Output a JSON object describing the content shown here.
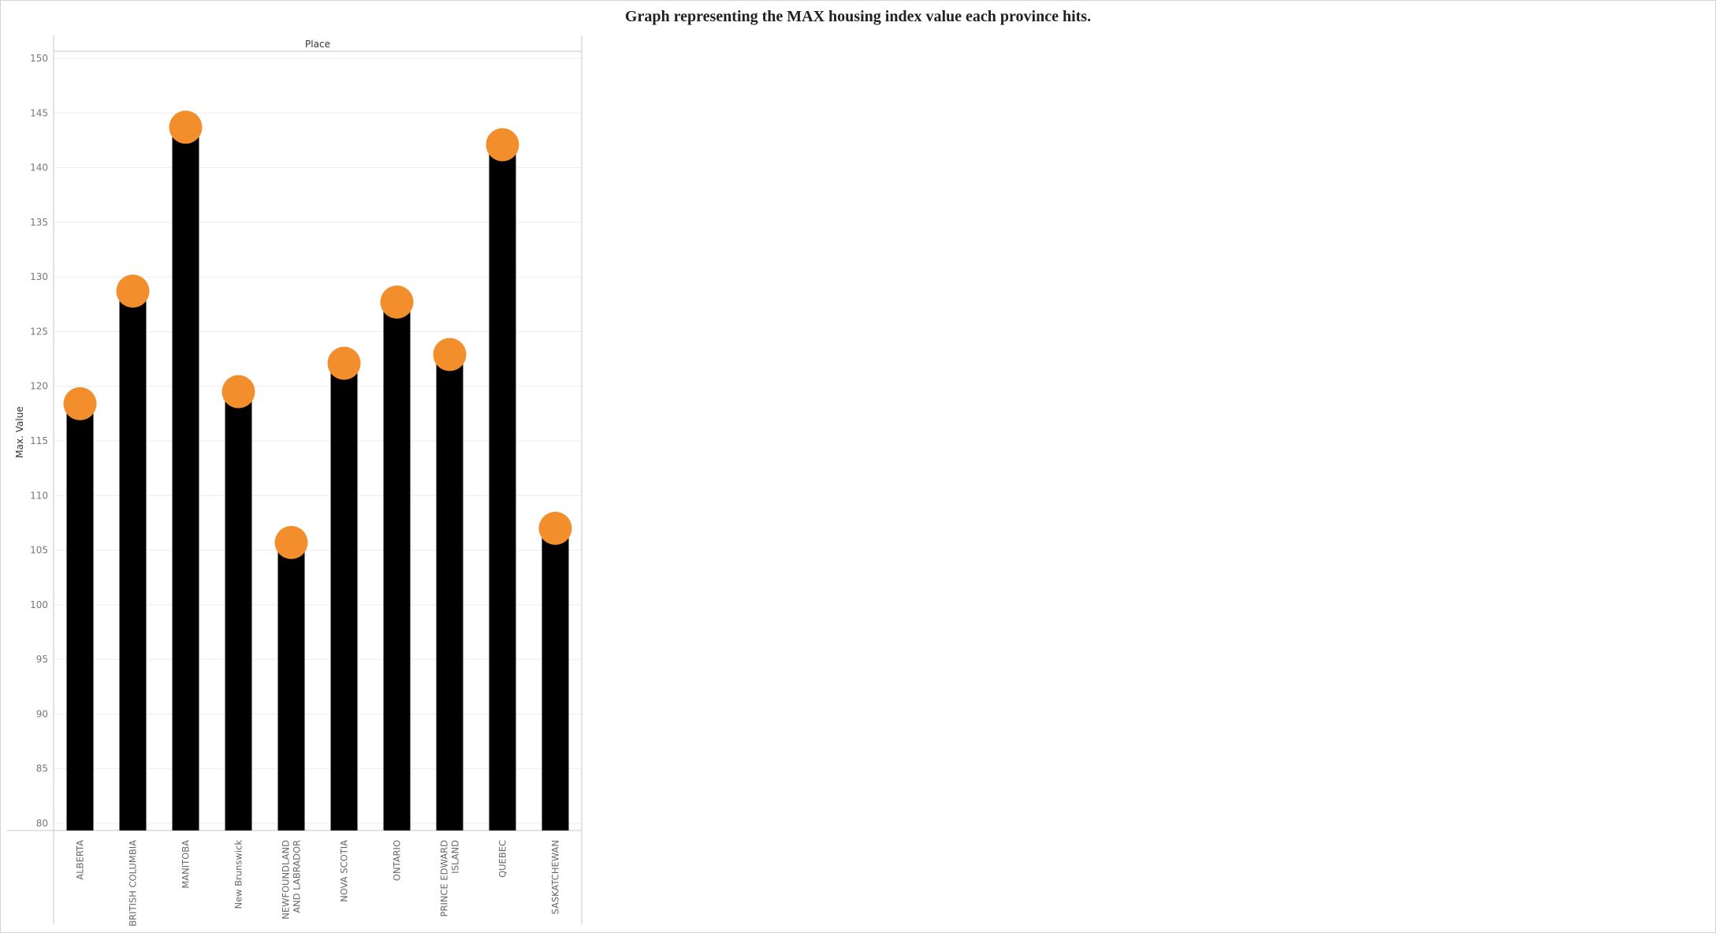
{
  "chart_data": {
    "type": "bar",
    "title": "Graph representing the MAX housing index value each province hits.",
    "header": "Place",
    "ylabel": "Max. Value",
    "ylim": [
      80,
      150
    ],
    "yticks": [
      80,
      85,
      90,
      95,
      100,
      105,
      110,
      115,
      120,
      125,
      130,
      135,
      140,
      145,
      150
    ],
    "grid": true,
    "categories": [
      "ALBERTA",
      "BRITISH COLUMBIA",
      "MANITOBA",
      "New Brunswick",
      "NEWFOUNDLAND AND LABRADOR",
      "NOVA SCOTIA",
      "ONTARIO",
      "PRINCE EDWARD ISLAND",
      "QUEBEC",
      "SASKATCHEWAN"
    ],
    "category_lines": [
      [
        "ALBERTA"
      ],
      [
        "BRITISH COLUMBIA"
      ],
      [
        "MANITOBA"
      ],
      [
        "New Brunswick"
      ],
      [
        "NEWFOUNDLAND",
        "AND LABRADOR"
      ],
      [
        "NOVA SCOTIA"
      ],
      [
        "ONTARIO"
      ],
      [
        "PRINCE EDWARD",
        "ISLAND"
      ],
      [
        "QUEBEC"
      ],
      [
        "SASKATCHEWAN"
      ]
    ],
    "values": [
      118.4,
      128.7,
      143.7,
      119.5,
      105.7,
      122.1,
      127.7,
      122.9,
      142.1,
      107.0
    ],
    "colors": {
      "bar": "#000000",
      "dot": "#f28e2b",
      "grid": "#ececec",
      "axis": "#c8c8c8"
    }
  }
}
